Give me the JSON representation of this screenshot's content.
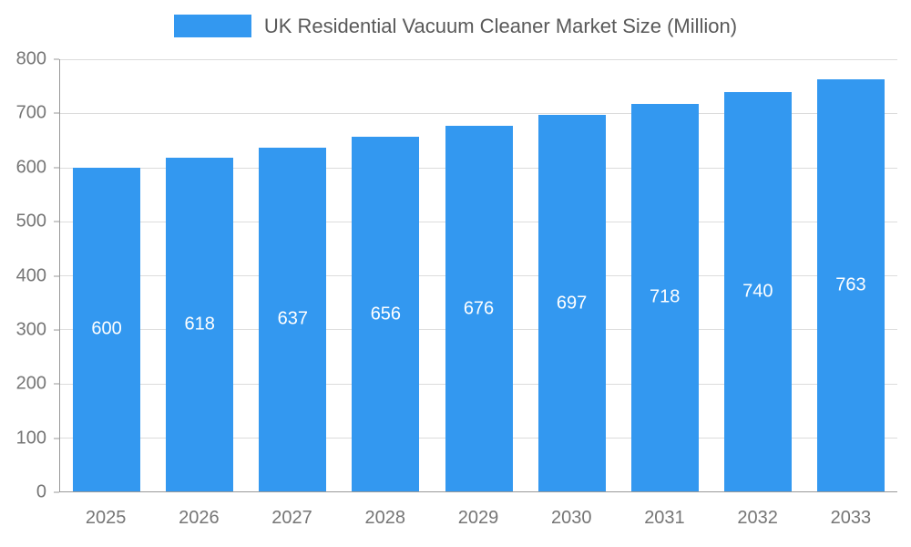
{
  "chart_data": {
    "type": "bar",
    "title": "UK Residential Vacuum Cleaner Market Size (Million)",
    "categories": [
      "2025",
      "2026",
      "2027",
      "2028",
      "2029",
      "2030",
      "2031",
      "2032",
      "2033"
    ],
    "values": [
      600,
      618,
      637,
      656,
      676,
      697,
      718,
      740,
      763
    ],
    "xlabel": "",
    "ylabel": "",
    "ylim": [
      0,
      800
    ],
    "ytick_step": 100,
    "grid": true,
    "legend_position": "top-center",
    "colors": {
      "bar": "#3398f0",
      "value_label": "#ffffff",
      "axis_tick_label": "#757575",
      "title_text": "#595959",
      "gridline": "#dcdcdc",
      "axis_line": "#999999"
    }
  }
}
